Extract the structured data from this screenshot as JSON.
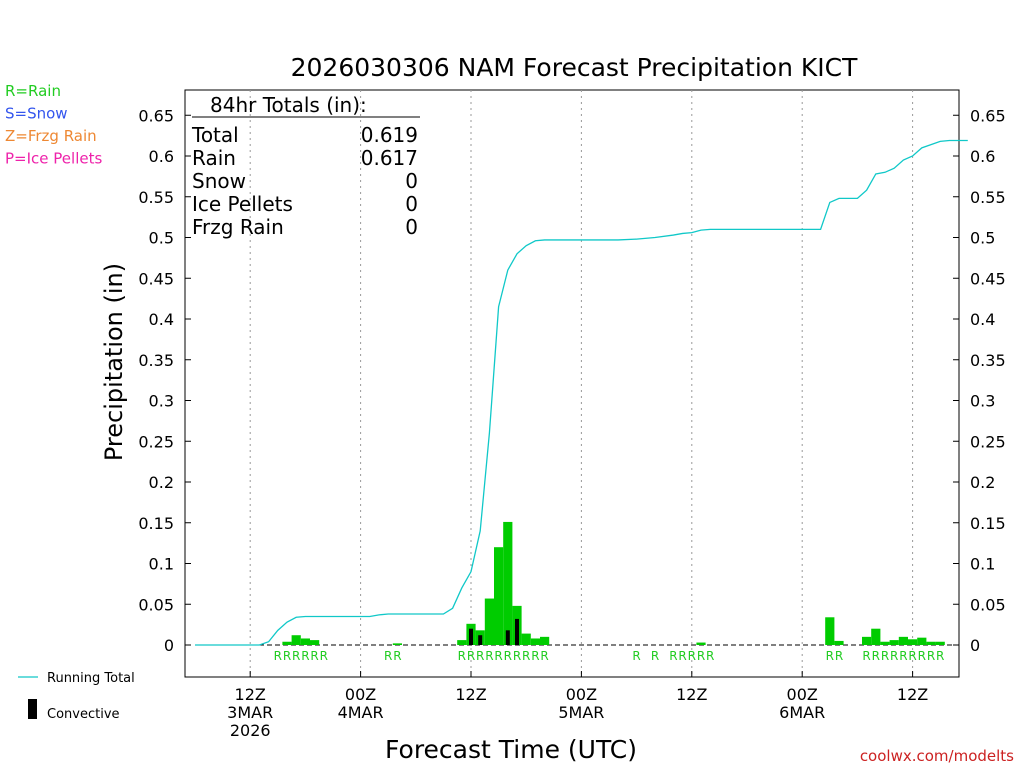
{
  "chart_data": {
    "type": "bar",
    "title": "2026030306 NAM Forecast Precipitation KICT",
    "xlabel": "Forecast Time (UTC)",
    "ylabel": "Precipitation (in)",
    "ylim": [
      0,
      0.67
    ],
    "yticks": [
      0,
      0.05,
      0.1,
      0.15,
      0.2,
      0.25,
      0.3,
      0.35,
      0.4,
      0.45,
      0.5,
      0.55,
      0.6,
      0.65
    ],
    "ytick_labels": [
      "0",
      "0.05",
      "0.1",
      "0.15",
      "0.2",
      "0.25",
      "0.3",
      "0.35",
      "0.4",
      "0.45",
      "0.5",
      "0.55",
      "0.6",
      "0.65"
    ],
    "x_unit": "forecast hour",
    "xlim": [
      0,
      84
    ],
    "x_ticks": [
      {
        "hour": 6,
        "lines": [
          "12Z",
          "3MAR",
          "2026"
        ]
      },
      {
        "hour": 18,
        "lines": [
          "00Z",
          "4MAR"
        ]
      },
      {
        "hour": 30,
        "lines": [
          "12Z"
        ]
      },
      {
        "hour": 42,
        "lines": [
          "00Z",
          "5MAR"
        ]
      },
      {
        "hour": 54,
        "lines": [
          "12Z"
        ]
      },
      {
        "hour": 66,
        "lines": [
          "00Z",
          "6MAR"
        ]
      },
      {
        "hour": 78,
        "lines": [
          "12Z"
        ]
      }
    ],
    "bars": [
      {
        "hour": 10,
        "value": 0.004,
        "conv": 0
      },
      {
        "hour": 11,
        "value": 0.012,
        "conv": 0
      },
      {
        "hour": 12,
        "value": 0.008,
        "conv": 0
      },
      {
        "hour": 13,
        "value": 0.006,
        "conv": 0
      },
      {
        "hour": 22,
        "value": 0.002,
        "conv": 0
      },
      {
        "hour": 29,
        "value": 0.006,
        "conv": 0
      },
      {
        "hour": 30,
        "value": 0.026,
        "conv": 0.02
      },
      {
        "hour": 31,
        "value": 0.018,
        "conv": 0.012
      },
      {
        "hour": 32,
        "value": 0.057,
        "conv": 0
      },
      {
        "hour": 33,
        "value": 0.12,
        "conv": 0
      },
      {
        "hour": 34,
        "value": 0.151,
        "conv": 0.018
      },
      {
        "hour": 35,
        "value": 0.048,
        "conv": 0.032
      },
      {
        "hour": 36,
        "value": 0.014,
        "conv": 0
      },
      {
        "hour": 37,
        "value": 0.008,
        "conv": 0
      },
      {
        "hour": 38,
        "value": 0.01,
        "conv": 0
      },
      {
        "hour": 55,
        "value": 0.003,
        "conv": 0
      },
      {
        "hour": 69,
        "value": 0.034,
        "conv": 0
      },
      {
        "hour": 70,
        "value": 0.005,
        "conv": 0
      },
      {
        "hour": 73,
        "value": 0.01,
        "conv": 0
      },
      {
        "hour": 74,
        "value": 0.02,
        "conv": 0
      },
      {
        "hour": 75,
        "value": 0.004,
        "conv": 0
      },
      {
        "hour": 76,
        "value": 0.006,
        "conv": 0
      },
      {
        "hour": 77,
        "value": 0.01,
        "conv": 0
      },
      {
        "hour": 78,
        "value": 0.007,
        "conv": 0
      },
      {
        "hour": 79,
        "value": 0.009,
        "conv": 0
      },
      {
        "hour": 80,
        "value": 0.004,
        "conv": 0
      },
      {
        "hour": 81,
        "value": 0.004,
        "conv": 0
      }
    ],
    "running_total": [
      [
        0,
        0
      ],
      [
        7,
        0
      ],
      [
        8,
        0.004
      ],
      [
        9,
        0.018
      ],
      [
        10,
        0.028
      ],
      [
        11,
        0.034
      ],
      [
        12,
        0.035
      ],
      [
        19,
        0.035
      ],
      [
        20,
        0.037
      ],
      [
        21,
        0.038
      ],
      [
        26,
        0.038
      ],
      [
        27,
        0.038
      ],
      [
        28,
        0.045
      ],
      [
        29,
        0.07
      ],
      [
        30,
        0.09
      ],
      [
        31,
        0.14
      ],
      [
        32,
        0.26
      ],
      [
        33,
        0.415
      ],
      [
        34,
        0.46
      ],
      [
        35,
        0.48
      ],
      [
        36,
        0.49
      ],
      [
        37,
        0.496
      ],
      [
        38,
        0.497
      ],
      [
        46,
        0.497
      ],
      [
        48,
        0.498
      ],
      [
        50,
        0.5
      ],
      [
        52,
        0.503
      ],
      [
        53,
        0.505
      ],
      [
        54,
        0.506
      ],
      [
        55,
        0.509
      ],
      [
        56,
        0.51
      ],
      [
        68,
        0.51
      ],
      [
        69,
        0.543
      ],
      [
        70,
        0.548
      ],
      [
        72,
        0.548
      ],
      [
        73,
        0.558
      ],
      [
        74,
        0.578
      ],
      [
        75,
        0.58
      ],
      [
        76,
        0.585
      ],
      [
        77,
        0.595
      ],
      [
        78,
        0.6
      ],
      [
        79,
        0.61
      ],
      [
        80,
        0.614
      ],
      [
        81,
        0.618
      ],
      [
        82,
        0.619
      ],
      [
        84,
        0.619
      ]
    ],
    "precip_type_labels": [
      {
        "hour": 9,
        "label": "R"
      },
      {
        "hour": 10,
        "label": "R"
      },
      {
        "hour": 11,
        "label": "R"
      },
      {
        "hour": 12,
        "label": "R"
      },
      {
        "hour": 13,
        "label": "R"
      },
      {
        "hour": 14,
        "label": "R"
      },
      {
        "hour": 21,
        "label": "R"
      },
      {
        "hour": 22,
        "label": "R"
      },
      {
        "hour": 29,
        "label": "R"
      },
      {
        "hour": 30,
        "label": "R"
      },
      {
        "hour": 31,
        "label": "R"
      },
      {
        "hour": 32,
        "label": "R"
      },
      {
        "hour": 33,
        "label": "R"
      },
      {
        "hour": 34,
        "label": "R"
      },
      {
        "hour": 35,
        "label": "R"
      },
      {
        "hour": 36,
        "label": "R"
      },
      {
        "hour": 37,
        "label": "R"
      },
      {
        "hour": 38,
        "label": "R"
      },
      {
        "hour": 48,
        "label": "R"
      },
      {
        "hour": 50,
        "label": "R"
      },
      {
        "hour": 52,
        "label": "R"
      },
      {
        "hour": 53,
        "label": "R"
      },
      {
        "hour": 54,
        "label": "R"
      },
      {
        "hour": 55,
        "label": "R"
      },
      {
        "hour": 56,
        "label": "R"
      },
      {
        "hour": 69,
        "label": "R"
      },
      {
        "hour": 70,
        "label": "R"
      },
      {
        "hour": 73,
        "label": "R"
      },
      {
        "hour": 74,
        "label": "R"
      },
      {
        "hour": 75,
        "label": "R"
      },
      {
        "hour": 76,
        "label": "R"
      },
      {
        "hour": 77,
        "label": "R"
      },
      {
        "hour": 78,
        "label": "R"
      },
      {
        "hour": 79,
        "label": "R"
      },
      {
        "hour": 80,
        "label": "R"
      },
      {
        "hour": 81,
        "label": "R"
      }
    ],
    "totals_box": {
      "heading": "84hr Totals (in):",
      "rows": [
        {
          "label": "Total",
          "value": "0.619"
        },
        {
          "label": "Rain",
          "value": "0.617"
        },
        {
          "label": "Snow",
          "value": "0"
        },
        {
          "label": "Ice Pellets",
          "value": "0"
        },
        {
          "label": "Frzg Rain",
          "value": "0"
        }
      ]
    },
    "type_legend": [
      {
        "label": "R=Rain",
        "color": "#22cc22"
      },
      {
        "label": "S=Snow",
        "color": "#3355ee"
      },
      {
        "label": "Z=Frzg Rain",
        "color": "#ee8833"
      },
      {
        "label": "P=Ice Pellets",
        "color": "#ee22aa"
      }
    ],
    "series_legend": [
      {
        "label": "Running Total",
        "color": "#10c8c8",
        "kind": "line"
      },
      {
        "label": "Convective",
        "color": "#000000",
        "kind": "bar"
      }
    ],
    "colors": {
      "bar": "#00cc00",
      "convective": "#000000",
      "running_total": "#10c8c8",
      "rain_label": "#22cc22",
      "credit": "#cc2222"
    },
    "credit": "coolwx.com/modelts"
  }
}
